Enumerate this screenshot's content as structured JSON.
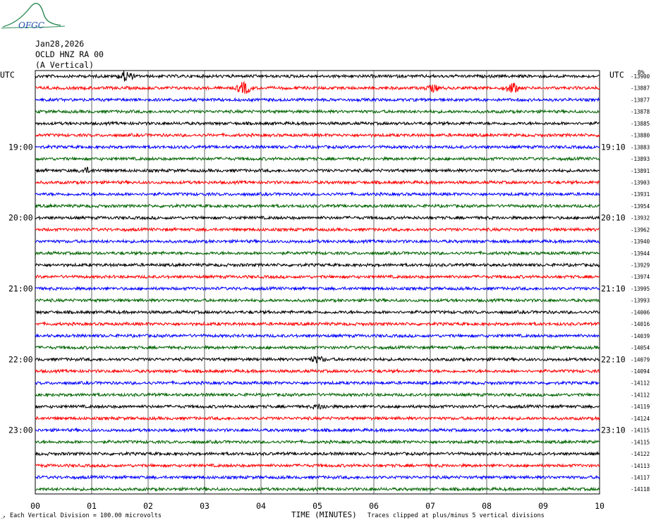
{
  "header": {
    "date": "Jan28,2026",
    "station": "OCLD HNZ RA 00",
    "component": "(A Vertical)",
    "logo_text": "OFGC"
  },
  "footer": {
    "scale_note": "Each Vertical Division =  100.00 microvolts",
    "xlabel": "TIME (MINUTES)",
    "clip_note": "Traces clipped at plus/minus 5 vertical divisions"
  },
  "colors": {
    "trace_cycle": [
      "#000000",
      "#ff0000",
      "#0000ff",
      "#006400"
    ],
    "grid": "#000000"
  },
  "chart_data": {
    "type": "line",
    "subtype": "helicorder",
    "xlabel": "TIME (MINUTES)",
    "xlim": [
      0,
      10
    ],
    "x_ticks": [
      "00",
      "01",
      "02",
      "03",
      "04",
      "05",
      "06",
      "07",
      "08",
      "09",
      "10"
    ],
    "left_axis_title": "UTC",
    "right_axis_title": "UTC",
    "top_right_label": "0%",
    "left_hour_labels": [
      {
        "row": 6,
        "label": "19:00"
      },
      {
        "row": 12,
        "label": "20:00"
      },
      {
        "row": 18,
        "label": "21:00"
      },
      {
        "row": 24,
        "label": "22:00"
      },
      {
        "row": 30,
        "label": "23:00"
      }
    ],
    "right_time_labels": [
      {
        "row": 6,
        "label": "19:10"
      },
      {
        "row": 12,
        "label": "20:10"
      },
      {
        "row": 18,
        "label": "21:10"
      },
      {
        "row": 24,
        "label": "22:10"
      },
      {
        "row": 30,
        "label": "23:10"
      }
    ],
    "trace_offsets": [
      -13900,
      -13887,
      -13877,
      -13878,
      -13885,
      -13880,
      -13883,
      -13893,
      -13891,
      -13903,
      -13931,
      -13954,
      -13932,
      -13962,
      -13940,
      -13944,
      -13929,
      -13974,
      -13995,
      -13993,
      -14006,
      -14016,
      -14039,
      -14054,
      -14079,
      -14094,
      -14112,
      -14112,
      -14119,
      -14124,
      -14115,
      -14115,
      -14122,
      -14113,
      -14117,
      -14118
    ],
    "events": [
      {
        "row": 0,
        "minute": 1.6,
        "amp": 2.2
      },
      {
        "row": 1,
        "minute": 3.7,
        "amp": 2.6
      },
      {
        "row": 1,
        "minute": 7.05,
        "amp": 1.3
      },
      {
        "row": 1,
        "minute": 8.45,
        "amp": 2.2
      },
      {
        "row": 8,
        "minute": 0.9,
        "amp": 1.0
      },
      {
        "row": 24,
        "minute": 5.0,
        "amp": 1.3
      },
      {
        "row": 28,
        "minute": 5.05,
        "amp": 0.9
      }
    ]
  }
}
